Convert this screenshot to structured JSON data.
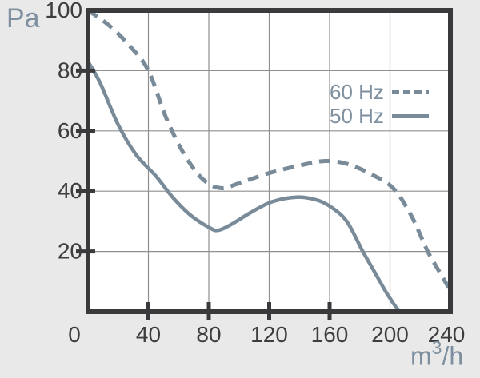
{
  "chart_data": {
    "type": "line",
    "title": "",
    "x_axis": {
      "unit_base": "m",
      "unit_sup": "3",
      "unit_rest": "/h",
      "min": 0,
      "max": 240,
      "tick_labels": [
        0,
        40,
        80,
        120,
        160,
        200,
        240
      ],
      "tick_marks": [
        40,
        80,
        120,
        160
      ]
    },
    "y_axis": {
      "unit": "Pa",
      "min": 0,
      "max": 100,
      "tick_labels": [
        20,
        40,
        60,
        80,
        100
      ],
      "tick_marks": [
        20,
        40,
        60,
        80
      ]
    },
    "grid": {
      "on": true,
      "x_lines": [
        40,
        80,
        120,
        160,
        200
      ],
      "y_lines": [
        20,
        40,
        60,
        80
      ]
    },
    "legend": {
      "position": "upper-right-inside"
    },
    "series": [
      {
        "name": "60 Hz",
        "style": "dashed",
        "points": [
          [
            0,
            100
          ],
          [
            14,
            95
          ],
          [
            28,
            88
          ],
          [
            40,
            80
          ],
          [
            52,
            64
          ],
          [
            64,
            52
          ],
          [
            76,
            44
          ],
          [
            88,
            41
          ],
          [
            102,
            43
          ],
          [
            120,
            46
          ],
          [
            140,
            48.5
          ],
          [
            157,
            50
          ],
          [
            172,
            49
          ],
          [
            188,
            45.5
          ],
          [
            202,
            41
          ],
          [
            214,
            32
          ],
          [
            225,
            20
          ],
          [
            233,
            13
          ],
          [
            240,
            7
          ]
        ]
      },
      {
        "name": "50 Hz",
        "style": "solid",
        "points": [
          [
            0,
            83
          ],
          [
            8,
            76
          ],
          [
            20,
            62
          ],
          [
            32,
            52
          ],
          [
            45,
            45
          ],
          [
            56,
            38
          ],
          [
            68,
            32
          ],
          [
            80,
            28
          ],
          [
            86,
            27
          ],
          [
            95,
            29
          ],
          [
            108,
            33
          ],
          [
            122,
            36.5
          ],
          [
            138,
            38
          ],
          [
            152,
            37
          ],
          [
            163,
            34
          ],
          [
            172,
            29.5
          ],
          [
            182,
            20
          ],
          [
            190,
            13
          ],
          [
            198,
            6
          ],
          [
            206,
            0
          ]
        ]
      }
    ],
    "colors": {
      "page_bg": "#e9e9ea",
      "plot_bg": "#ffffff",
      "frame": "#3a3a3c",
      "grid": "#8f8f8f",
      "curve": "#798b99",
      "tick_label": "#3d3d3f",
      "unit_label": "#7e90a0"
    }
  }
}
